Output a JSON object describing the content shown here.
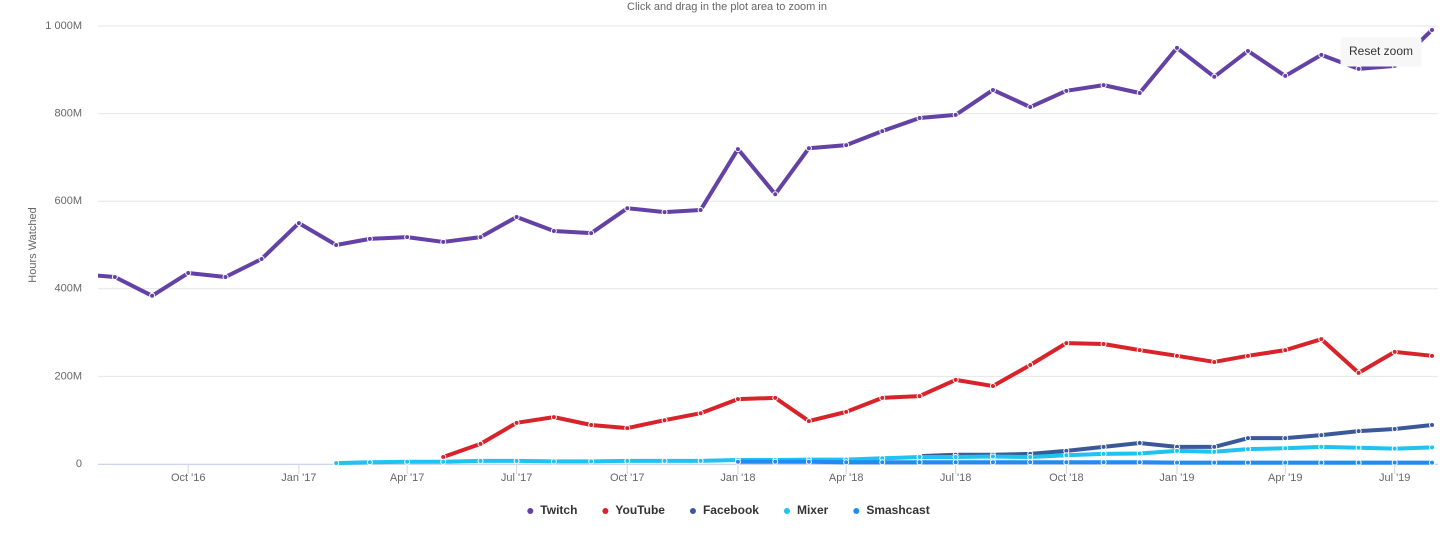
{
  "chart_data": {
    "type": "line",
    "subtitle": "Click and drag in the plot area to zoom in",
    "ylabel": "Hours Watched",
    "reset_button": "Reset zoom",
    "x": [
      "2016-07",
      "2016-08",
      "2016-09",
      "2016-10",
      "2016-11",
      "2016-12",
      "2017-01",
      "2017-02",
      "2017-03",
      "2017-04",
      "2017-05",
      "2017-06",
      "2017-07",
      "2017-08",
      "2017-09",
      "2017-10",
      "2017-11",
      "2017-12",
      "2018-01",
      "2018-02",
      "2018-03",
      "2018-04",
      "2018-05",
      "2018-06",
      "2018-07",
      "2018-08",
      "2018-09",
      "2018-10",
      "2018-11",
      "2018-12",
      "2019-01",
      "2019-02",
      "2019-03",
      "2019-04",
      "2019-05",
      "2019-06",
      "2019-07",
      "2019-08"
    ],
    "series": [
      {
        "name": "Twitch",
        "color": "#6441a5",
        "values": [
          434,
          427,
          384,
          436,
          427,
          468,
          550,
          500,
          514,
          518,
          507,
          518,
          564,
          532,
          527,
          584,
          575,
          580,
          719,
          616,
          721,
          728,
          760,
          790,
          797,
          854,
          815,
          852,
          865,
          847,
          950,
          884,
          943,
          886,
          934,
          902,
          909,
          991
        ]
      },
      {
        "name": "YouTube",
        "color": "#d9232a",
        "values": [
          null,
          null,
          null,
          null,
          null,
          null,
          null,
          null,
          null,
          null,
          16,
          46,
          94,
          107,
          89,
          82,
          100,
          116,
          148,
          151,
          98,
          119,
          151,
          155,
          192,
          178,
          226,
          276,
          274,
          260,
          247,
          233,
          247,
          260,
          285,
          208,
          256,
          247
        ]
      },
      {
        "name": "Facebook",
        "color": "#3b5998",
        "values": [
          null,
          null,
          null,
          null,
          null,
          null,
          null,
          null,
          null,
          null,
          null,
          null,
          null,
          null,
          null,
          null,
          null,
          null,
          null,
          null,
          null,
          null,
          null,
          18,
          21,
          21,
          23,
          30,
          39,
          48,
          39,
          39,
          59,
          59,
          66,
          75,
          80,
          89
        ]
      },
      {
        "name": "Mixer",
        "color": "#1fc3f0",
        "values": [
          null,
          null,
          null,
          null,
          null,
          null,
          null,
          2,
          4,
          5,
          5,
          7,
          7,
          6,
          6,
          7,
          7,
          7,
          9,
          9,
          10,
          10,
          13,
          16,
          16,
          17,
          16,
          20,
          23,
          24,
          30,
          28,
          34,
          36,
          39,
          37,
          35,
          38
        ]
      },
      {
        "name": "Smashcast",
        "color": "#208bf0",
        "values": [
          null,
          null,
          null,
          null,
          null,
          null,
          null,
          null,
          null,
          null,
          null,
          null,
          null,
          null,
          null,
          null,
          null,
          null,
          5,
          5,
          5,
          4,
          4,
          4,
          4,
          4,
          4,
          4,
          4,
          4,
          3,
          3,
          3,
          3,
          3,
          3,
          3,
          3
        ]
      }
    ],
    "xlim": [
      "2016-07-18",
      "2019-08-01"
    ],
    "xticks": [
      {
        "value": "2016-10",
        "label": "Oct '16"
      },
      {
        "value": "2017-01",
        "label": "Jan '17"
      },
      {
        "value": "2017-04",
        "label": "Apr '17"
      },
      {
        "value": "2017-07",
        "label": "Jul '17"
      },
      {
        "value": "2017-10",
        "label": "Oct '17"
      },
      {
        "value": "2018-01",
        "label": "Jan '18"
      },
      {
        "value": "2018-04",
        "label": "Apr '18"
      },
      {
        "value": "2018-07",
        "label": "Jul '18"
      },
      {
        "value": "2018-10",
        "label": "Oct '18"
      },
      {
        "value": "2019-01",
        "label": "Jan '19"
      },
      {
        "value": "2019-04",
        "label": "Apr '19"
      },
      {
        "value": "2019-07",
        "label": "Jul '19"
      }
    ],
    "ylim": [
      0,
      1000
    ],
    "yticks": [
      0,
      {
        "value": 200,
        "label": "200M"
      },
      {
        "value": 400,
        "label": "400M"
      },
      {
        "value": 600,
        "label": "600M"
      },
      {
        "value": 800,
        "label": "800M"
      },
      {
        "value": 1000,
        "label": "1 000M"
      }
    ],
    "grid": true,
    "legend": "bottom"
  }
}
